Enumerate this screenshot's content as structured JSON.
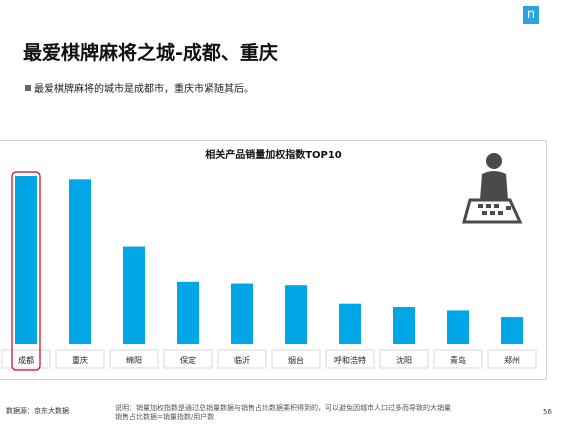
{
  "brand": {
    "logo_letter": "n",
    "color": "#2ba3dc"
  },
  "header": {
    "title": "最爱棋牌麻将之城-成都、重庆",
    "bullet": "最爱棋牌麻将的城市是成都市，重庆市紧随其后。"
  },
  "chart_data": {
    "type": "bar",
    "title": "相关产品销量加权指数TOP10",
    "categories": [
      "成都",
      "重庆",
      "绵阳",
      "保定",
      "临沂",
      "烟台",
      "呼和浩特",
      "沈阳",
      "青岛",
      "郑州"
    ],
    "values": [
      100,
      98,
      58,
      37,
      36,
      35,
      24,
      22,
      20,
      16
    ],
    "ylim": [
      0,
      100
    ],
    "bar_color": "#00a6e6",
    "highlight_category": "成都",
    "highlight_color": "#d0021b",
    "grid": false,
    "illustration": "mahjong-player-icon"
  },
  "footer": {
    "source": "数据源：京东大数据",
    "note": "说明：销量加权指数是通过总销量数据与销售占比数据乘积得到的，可以避免因城市人口过多而导致的大销量\n销售占比数据=销量指数/用户数",
    "page": "56"
  }
}
